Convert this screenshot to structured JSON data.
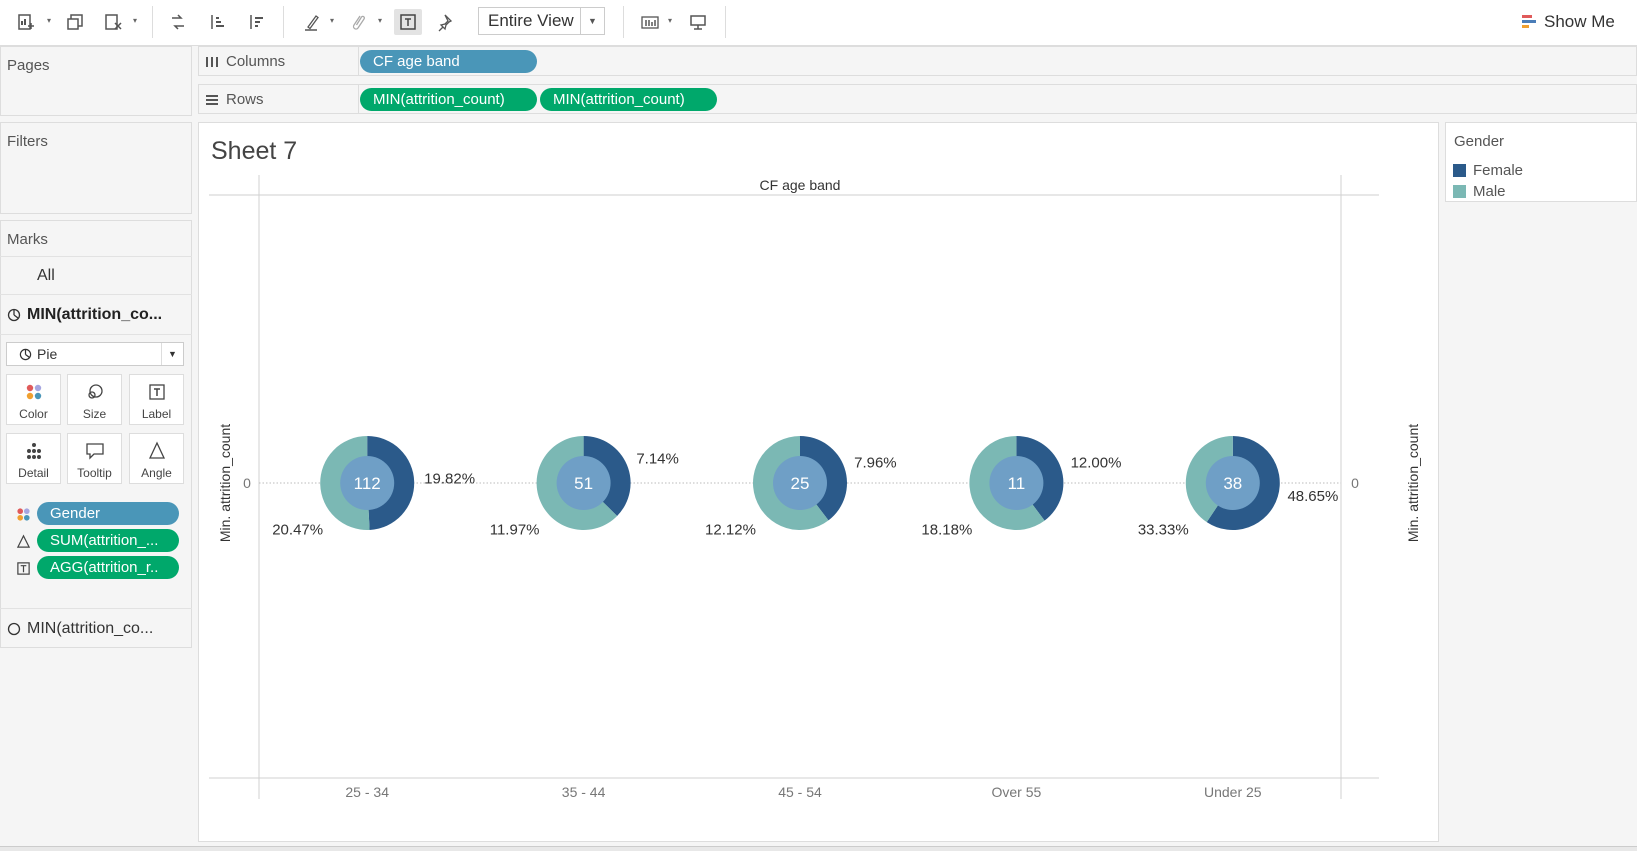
{
  "toolbar": {
    "fit_value": "Entire View",
    "show_me_label": "Show Me"
  },
  "panes": {
    "pages": "Pages",
    "filters": "Filters",
    "marks": "Marks"
  },
  "shelves": {
    "columns_label": "Columns",
    "rows_label": "Rows",
    "columns_pills": [
      "CF age band"
    ],
    "rows_pills": [
      "MIN(attrition_count)",
      "MIN(attrition_count)"
    ]
  },
  "marks": {
    "all_label": "All",
    "active_card_label": "MIN(attrition_co...",
    "mark_type": "Pie",
    "cards": {
      "color": "Color",
      "size": "Size",
      "label": "Label",
      "detail": "Detail",
      "tooltip": "Tooltip",
      "angle": "Angle"
    },
    "encodings": [
      "Gender",
      "SUM(attrition_...",
      "AGG(attrition_r.."
    ],
    "second_card_label": "MIN(attrition_co..."
  },
  "sheet": {
    "title": "Sheet 7"
  },
  "legend": {
    "title": "Gender",
    "items": [
      {
        "label": "Female",
        "color": "#2b5a8a"
      },
      {
        "label": "Male",
        "color": "#7bb8b4"
      }
    ]
  },
  "chart_data": {
    "type": "pie",
    "column_header": "CF age band",
    "ylabel_left": "Min. attrition_count",
    "ylabel_right": "Min. attrition_count",
    "y_tick_left": "0",
    "y_tick_right": "0",
    "categories": [
      "25 - 34",
      "35 - 44",
      "45 - 54",
      "Over 55",
      "Under 25"
    ],
    "center_values": [
      112,
      51,
      25,
      11,
      38
    ],
    "series": [
      {
        "name": "Female",
        "color": "#2b5a8a",
        "labels": [
          "19.82%",
          "7.14%",
          "7.96%",
          "12.00%",
          "48.65%"
        ],
        "values": [
          19.82,
          7.14,
          7.96,
          12.0,
          48.65
        ]
      },
      {
        "name": "Male",
        "color": "#7bb8b4",
        "labels": [
          "20.47%",
          "11.97%",
          "12.12%",
          "18.18%",
          "33.33%"
        ],
        "values": [
          20.47,
          11.97,
          12.12,
          18.18,
          33.33
        ]
      }
    ],
    "inner_color": "#6f9fc6",
    "grid": false,
    "legend_position": "right"
  }
}
